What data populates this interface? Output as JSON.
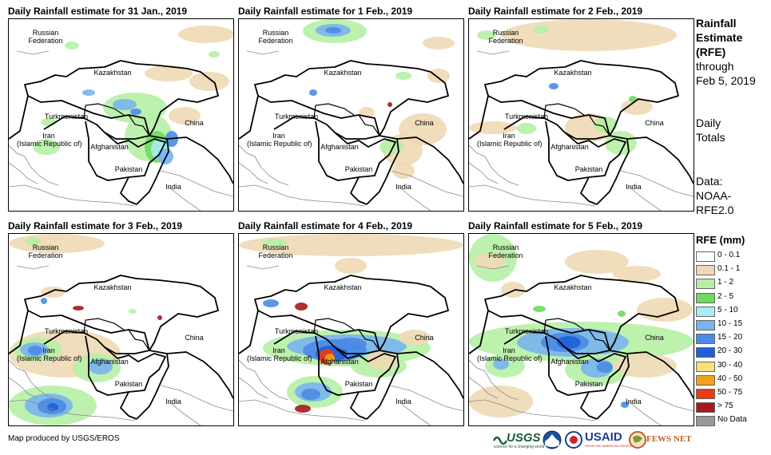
{
  "panels": [
    {
      "title": "Daily Rainfall estimate for 31 Jan., 2019"
    },
    {
      "title": "Daily Rainfall estimate for 1 Feb., 2019"
    },
    {
      "title": "Daily Rainfall estimate for 2 Feb., 2019"
    },
    {
      "title": "Daily Rainfall estimate for 3 Feb., 2019"
    },
    {
      "title": "Daily Rainfall estimate for 4 Feb., 2019"
    },
    {
      "title": "Daily Rainfall estimate for 5 Feb., 2019"
    }
  ],
  "countries": {
    "russia_line1": "Russian",
    "russia_line2": "Federation",
    "kazakhstan": "Kazakhstan",
    "turkmenistan": "Turkmenistan",
    "iran_line1": "Iran",
    "iran_line2": "(Islamic Republic of)",
    "afghanistan": "Afghanistan",
    "pakistan": "Pakistan",
    "china": "China",
    "india": "India"
  },
  "side": {
    "title_1": "Rainfall",
    "title_2": "Estimate",
    "title_3": "(RFE)",
    "through": "through",
    "date": "Feb 5, 2019",
    "daily": "Daily",
    "totals": "Totals",
    "data_label": "Data:",
    "data_src_1": "NOAA-",
    "data_src_2": "RFE2.0"
  },
  "legend": {
    "title": "RFE (mm)",
    "items": [
      {
        "label": "0 - 0.1",
        "color": "#ffffff"
      },
      {
        "label": "0.1 - 1",
        "color": "#eed9b4"
      },
      {
        "label": "1 - 2",
        "color": "#b6efa5"
      },
      {
        "label": "2 - 5",
        "color": "#6edb5e"
      },
      {
        "label": "5 - 10",
        "color": "#a7ecf7"
      },
      {
        "label": "10 - 15",
        "color": "#78b4ee"
      },
      {
        "label": "15 - 20",
        "color": "#4a8be6"
      },
      {
        "label": "20 - 30",
        "color": "#1f5fd8"
      },
      {
        "label": "30 - 40",
        "color": "#f7e080"
      },
      {
        "label": "40 - 50",
        "color": "#f3a11c"
      },
      {
        "label": "50 - 75",
        "color": "#ec3b12"
      },
      {
        "label": "> 75",
        "color": "#a61a1a"
      },
      {
        "label": "No Data",
        "color": "#999999"
      }
    ]
  },
  "credit": "Map produced by USGS/EROS",
  "logos": {
    "usgs": "USGS",
    "usgs_tagline": "science for a changing world",
    "usaid": "USAID",
    "usaid_tagline": "FROM THE AMERICAN PEOPLE",
    "fewsnet": "FEWS NET"
  }
}
